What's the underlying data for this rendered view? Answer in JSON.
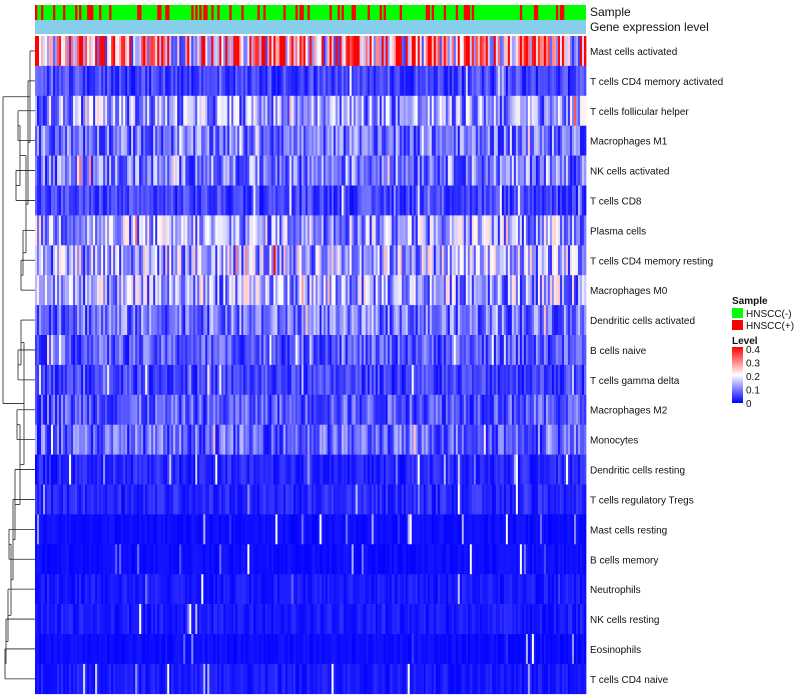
{
  "chart_data": {
    "type": "heatmap",
    "title": "",
    "annotation_tracks": [
      "Sample",
      "Gene expression level"
    ],
    "rows": [
      "Mast cells activated",
      "T cells CD4 memory activated",
      "T cells follicular helper",
      "Macrophages M1",
      "NK cells activated",
      "T cells CD8",
      "Plasma cells",
      "T cells CD4 memory resting",
      "Macrophages M0",
      "Dendritic cells activated",
      "B cells naive",
      "T cells gamma delta",
      "Macrophages M2",
      "Monocytes",
      "Dendritic cells resting",
      "T cells regulatory  Tregs",
      "Mast cells resting",
      "B cells memory",
      "Neutrophils",
      "NK cells resting",
      "Eosinophils",
      "T cells CD4 naive"
    ],
    "row_mean_levels": [
      0.26,
      0.05,
      0.12,
      0.09,
      0.1,
      0.05,
      0.13,
      0.14,
      0.13,
      0.09,
      0.07,
      0.05,
      0.07,
      0.08,
      0.03,
      0.03,
      0.01,
      0.01,
      0.02,
      0.02,
      0.01,
      0.02
    ],
    "n_samples": 275,
    "legend_sample": {
      "title": "Sample",
      "entries": [
        {
          "label": "HNSCC(-)",
          "color": "#00ff00"
        },
        {
          "label": "HNSCC(+)",
          "color": "#ff0000"
        }
      ]
    },
    "legend_level": {
      "title": "Level",
      "ticks": [
        "0.4",
        "0.3",
        "0.2",
        "0.1",
        "0"
      ],
      "range": [
        0,
        0.4
      ],
      "colors": [
        "#0000ff",
        "#ffffff",
        "#ff0000"
      ]
    },
    "expression_track_color": "#87ceeb"
  }
}
